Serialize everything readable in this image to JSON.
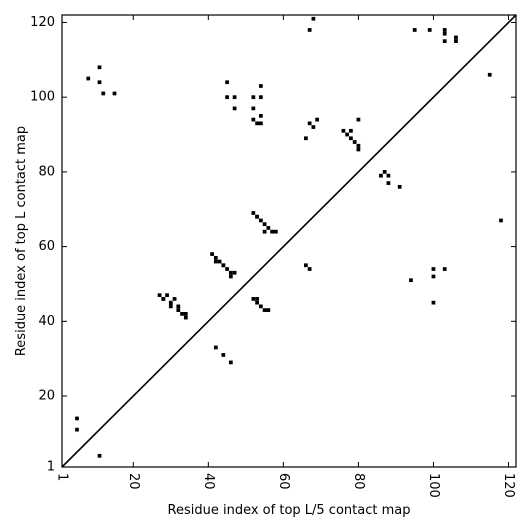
{
  "chart_data": {
    "type": "scatter",
    "title": "",
    "xlabel": "Residue index of top L/5 contact map",
    "ylabel": "Residue index of top L contact map",
    "xlim": [
      1,
      122
    ],
    "ylim": [
      1,
      122
    ],
    "x_ticks": [
      1,
      20,
      40,
      60,
      80,
      100,
      120
    ],
    "y_ticks": [
      1,
      20,
      40,
      60,
      80,
      100,
      120
    ],
    "x_tick_labels": [
      "1",
      "20",
      "40",
      "60",
      "80",
      "100",
      "120"
    ],
    "y_tick_labels": [
      "1",
      "20",
      "40",
      "60",
      "80",
      "100",
      "120"
    ],
    "x_tick_rotation": -90,
    "grid": false,
    "legend": "none",
    "diagonal": true,
    "marker_color": "#000000",
    "series": [
      {
        "region": "lower",
        "x": [
          5,
          5,
          11,
          46,
          44,
          42,
          53,
          54,
          55,
          56,
          52,
          53,
          66,
          67,
          94,
          100,
          100,
          103,
          100,
          118,
          27,
          28,
          29,
          30,
          31,
          32,
          33,
          34,
          28,
          30,
          32,
          34,
          41,
          42,
          43,
          44,
          45,
          46,
          47,
          42,
          44,
          46,
          52,
          53,
          54,
          55,
          56,
          57,
          58,
          53,
          55,
          86,
          87,
          88,
          88,
          91
        ],
        "y": [
          14,
          11,
          4,
          29,
          31,
          33,
          45,
          44,
          43,
          43,
          46,
          46,
          55,
          54,
          51,
          45,
          52,
          54,
          54,
          67,
          47,
          46,
          47,
          45,
          46,
          44,
          42,
          41,
          46,
          44,
          43,
          42,
          58,
          57,
          56,
          55,
          54,
          53,
          53,
          56,
          55,
          52,
          69,
          68,
          67,
          66,
          65,
          64,
          64,
          68,
          64,
          79,
          80,
          79,
          77,
          76
        ]
      },
      {
        "region": "upper",
        "x": [
          8,
          11,
          11,
          12,
          15,
          45,
          45,
          47,
          47,
          52,
          52,
          52,
          53,
          54,
          54,
          54,
          54,
          66,
          67,
          68,
          68,
          67,
          69,
          76,
          77,
          78,
          79,
          80,
          78,
          80,
          80,
          95,
          99,
          103,
          103,
          106,
          106,
          115,
          103
        ],
        "y": [
          105,
          108,
          104,
          101,
          101,
          104,
          100,
          97,
          100,
          100,
          97,
          94,
          93,
          95,
          93,
          100,
          103,
          89,
          93,
          92,
          121,
          118,
          94,
          91,
          90,
          89,
          88,
          87,
          91,
          86,
          94,
          118,
          118,
          118,
          115,
          116,
          115,
          106,
          117
        ]
      }
    ]
  }
}
